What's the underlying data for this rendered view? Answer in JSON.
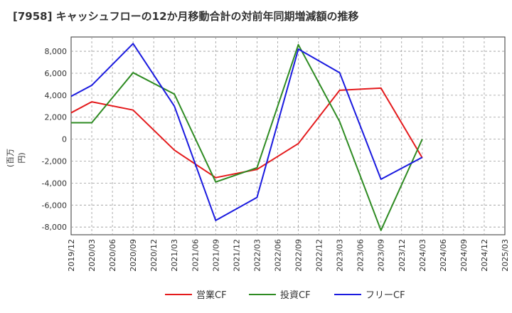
{
  "chart_data": {
    "type": "line",
    "title": "[7958]  キャッシュフローの12か月移動合計の対前年同期増減額の推移",
    "ylabel": "(百万円)",
    "xlabel": "",
    "ylim": [
      -8700,
      9300
    ],
    "yticks": [
      -8000,
      -6000,
      -4000,
      -2000,
      0,
      2000,
      4000,
      6000,
      8000
    ],
    "ytick_labels": [
      "-8,000",
      "-6,000",
      "-4,000",
      "-2,000",
      "0",
      "2,000",
      "4,000",
      "6,000",
      "8,000"
    ],
    "categories": [
      "2019/12",
      "2020/03",
      "2020/06",
      "2020/09",
      "2020/12",
      "2021/03",
      "2021/06",
      "2021/09",
      "2021/12",
      "2022/03",
      "2022/06",
      "2022/09",
      "2022/12",
      "2023/03",
      "2023/06",
      "2023/09",
      "2023/12",
      "2024/03",
      "2024/06",
      "2024/09",
      "2024/12",
      "2025/03"
    ],
    "series": [
      {
        "name": "営業CF",
        "color": "#e41a1c",
        "values": [
          2400,
          3400,
          null,
          2650,
          null,
          -1000,
          null,
          -3500,
          null,
          -2750,
          null,
          -400,
          null,
          4450,
          null,
          4650,
          null,
          -1700,
          null,
          null,
          null,
          null
        ]
      },
      {
        "name": "投資CF",
        "color": "#2e8b22",
        "values": [
          1500,
          1500,
          null,
          6050,
          null,
          4100,
          null,
          -3900,
          null,
          -2600,
          null,
          8600,
          null,
          1600,
          null,
          -8300,
          null,
          0,
          null,
          null,
          null,
          null
        ]
      },
      {
        "name": "フリーCF",
        "color": "#1a1adf",
        "values": [
          3900,
          4900,
          null,
          8700,
          null,
          3000,
          null,
          -7400,
          null,
          -5300,
          null,
          8200,
          null,
          6050,
          null,
          -3650,
          null,
          -1650,
          null,
          null,
          null,
          null
        ]
      }
    ],
    "legend_position": "bottom",
    "grid": true
  }
}
